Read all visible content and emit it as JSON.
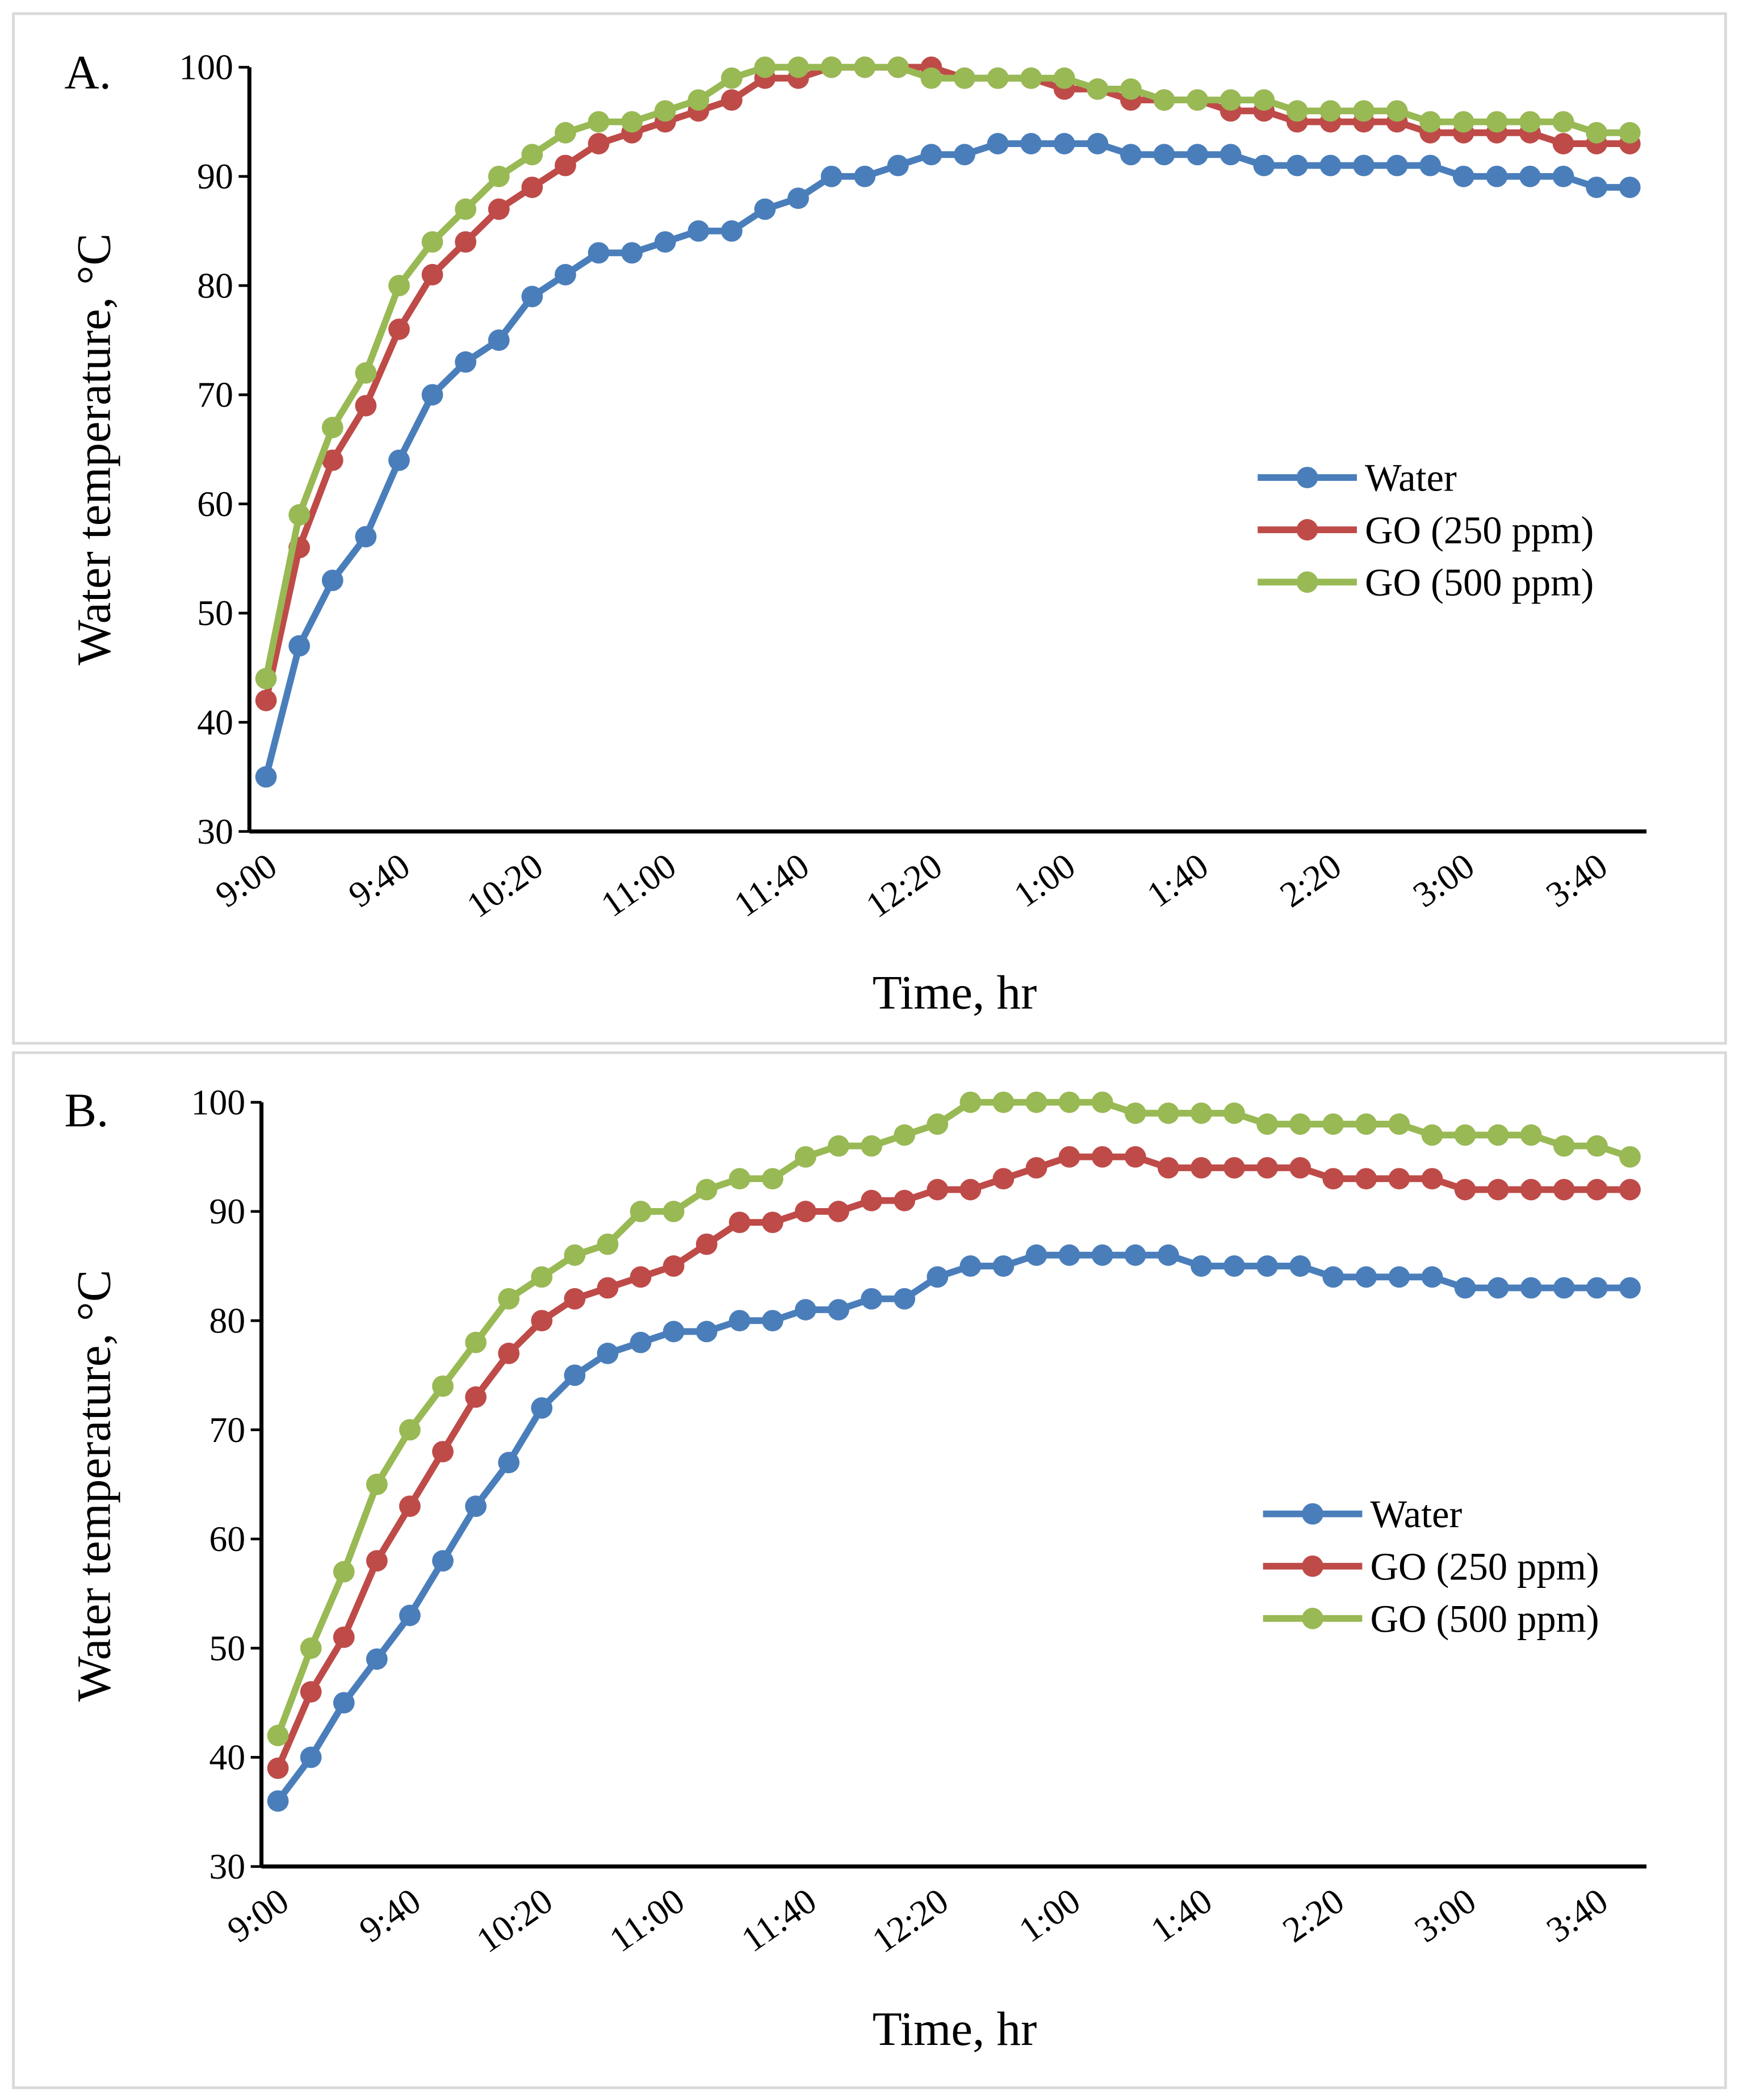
{
  "chart_data": [
    {
      "type": "line",
      "title": "A.",
      "x_label": "Time, hr",
      "y_label": "Water temperature, °C",
      "categories": [
        "9:00",
        null,
        null,
        null,
        "9:40",
        null,
        null,
        null,
        "10:20",
        null,
        null,
        null,
        "11:00",
        null,
        null,
        null,
        "11:40",
        null,
        null,
        null,
        "12:20",
        null,
        null,
        null,
        "1:00",
        null,
        null,
        null,
        "1:40",
        null,
        null,
        null,
        "2:20",
        null,
        null,
        null,
        "3:00",
        null,
        null,
        null,
        "3:40",
        null
      ],
      "ylim": [
        30,
        100
      ],
      "yticks": [
        30,
        40,
        50,
        60,
        70,
        80,
        90,
        100
      ],
      "series": [
        {
          "name": "Water",
          "color": "#4a7ebb",
          "values": [
            35,
            47,
            53,
            57,
            64,
            70,
            73,
            75,
            79,
            81,
            83,
            83,
            84,
            85,
            85,
            87,
            88,
            90,
            90,
            91,
            92,
            92,
            93,
            93,
            93,
            93,
            92,
            92,
            92,
            92,
            91,
            91,
            91,
            91,
            91,
            91,
            90,
            90,
            90,
            90,
            89,
            89
          ]
        },
        {
          "name": "GO (250 ppm)",
          "color": "#be4b48",
          "values": [
            42,
            56,
            64,
            69,
            76,
            81,
            84,
            87,
            89,
            91,
            93,
            94,
            95,
            96,
            97,
            99,
            99,
            100,
            100,
            100,
            100,
            99,
            99,
            99,
            98,
            98,
            97,
            97,
            97,
            96,
            96,
            95,
            95,
            95,
            95,
            94,
            94,
            94,
            94,
            93,
            93,
            93
          ]
        },
        {
          "name": "GO (500 ppm)",
          "color": "#98b954",
          "values": [
            44,
            59,
            67,
            72,
            80,
            84,
            87,
            90,
            92,
            94,
            95,
            95,
            96,
            97,
            99,
            100,
            100,
            100,
            100,
            100,
            99,
            99,
            99,
            99,
            99,
            98,
            98,
            97,
            97,
            97,
            97,
            96,
            96,
            96,
            96,
            95,
            95,
            95,
            95,
            95,
            94,
            94
          ]
        }
      ]
    },
    {
      "type": "line",
      "title": "B.",
      "x_label": "Time, hr",
      "y_label": "Water temperature, °C",
      "categories": [
        "9:00",
        null,
        null,
        null,
        "9:40",
        null,
        null,
        null,
        "10:20",
        null,
        null,
        null,
        "11:00",
        null,
        null,
        null,
        "11:40",
        null,
        null,
        null,
        "12:20",
        null,
        null,
        null,
        "1:00",
        null,
        null,
        null,
        "1:40",
        null,
        null,
        null,
        "2:20",
        null,
        null,
        null,
        "3:00",
        null,
        null,
        null,
        "3:40",
        null
      ],
      "ylim": [
        30,
        100
      ],
      "yticks": [
        30,
        40,
        50,
        60,
        70,
        80,
        90,
        100
      ],
      "series": [
        {
          "name": "Water",
          "color": "#4a7ebb",
          "values": [
            36,
            40,
            45,
            49,
            53,
            58,
            63,
            67,
            72,
            75,
            77,
            78,
            79,
            79,
            80,
            80,
            81,
            81,
            82,
            82,
            84,
            85,
            85,
            86,
            86,
            86,
            86,
            86,
            85,
            85,
            85,
            85,
            84,
            84,
            84,
            84,
            83,
            83,
            83,
            83,
            83,
            83
          ]
        },
        {
          "name": "GO (250 ppm)",
          "color": "#be4b48",
          "values": [
            39,
            46,
            51,
            58,
            63,
            68,
            73,
            77,
            80,
            82,
            83,
            84,
            85,
            87,
            89,
            89,
            90,
            90,
            91,
            91,
            92,
            92,
            93,
            94,
            95,
            95,
            95,
            94,
            94,
            94,
            94,
            94,
            93,
            93,
            93,
            93,
            92,
            92,
            92,
            92,
            92,
            92
          ]
        },
        {
          "name": "GO (500 ppm)",
          "color": "#98b954",
          "values": [
            42,
            50,
            57,
            65,
            70,
            74,
            78,
            82,
            84,
            86,
            87,
            90,
            90,
            92,
            93,
            93,
            95,
            96,
            96,
            97,
            98,
            100,
            100,
            100,
            100,
            100,
            99,
            99,
            99,
            99,
            98,
            98,
            98,
            98,
            98,
            97,
            97,
            97,
            97,
            96,
            96,
            95
          ]
        }
      ]
    }
  ]
}
